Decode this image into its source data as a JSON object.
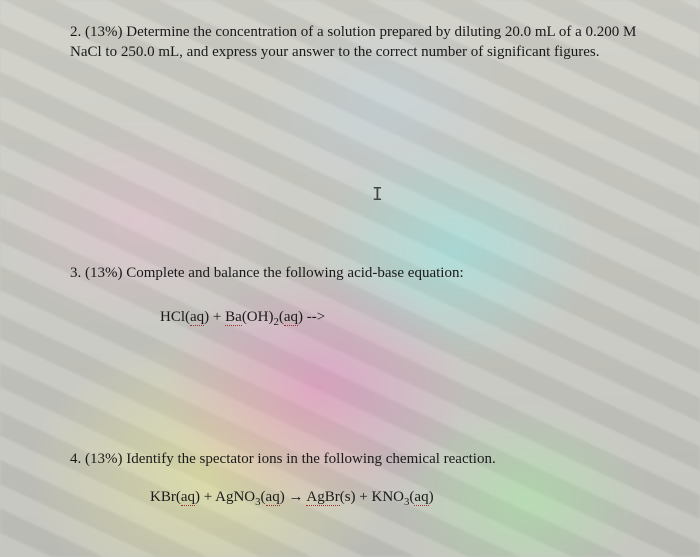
{
  "q2": {
    "text": "2. (13%) Determine the concentration of a solution prepared by diluting 20.0 mL of a 0.200 M NaCl to 250.0 mL, and express your answer to the correct number of significant figures."
  },
  "q3": {
    "prompt": "3. (13%) Complete and balance the following acid-base equation:",
    "eq_prefix": "HCl(",
    "aq1": "aq",
    "mid1": ") + ",
    "ba": "Ba",
    "oh": "(OH)",
    "two": "2",
    "open2": "(",
    "aq2": "aq",
    "close_arrow": ") -->"
  },
  "q4": {
    "prompt": "4. (13%) Identify the spectator ions in the following chemical reaction.",
    "l1": "KBr(",
    "aq1": "aq",
    "l2": ") + AgNO",
    "three1": "3",
    "l3": "(",
    "aq2": "aq",
    "l4": ") → ",
    "agbr": "AgBr",
    "l5": "(s) + KNO",
    "three2": "3",
    "l6": "(",
    "aq3": "aq",
    "l7": ")"
  },
  "cursor": "I"
}
